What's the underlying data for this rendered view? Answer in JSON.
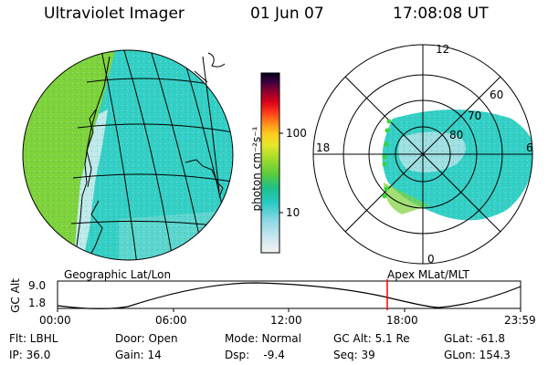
{
  "header": {
    "title": "Ultraviolet Imager",
    "date": "01 Jun 07",
    "time": "17:08:08 UT"
  },
  "colorbar": {
    "unit_label": "photon cm⁻²s⁻¹",
    "ticks": [
      "100",
      "10"
    ]
  },
  "polar_plot": {
    "hour_labels": {
      "top": "12",
      "left": "18",
      "right": "6",
      "bottom": "0"
    },
    "lat_labels": [
      "60",
      "70",
      "80"
    ]
  },
  "projections": {
    "left": "Geographic Lat/Lon",
    "right": "Apex  MLat/MLT"
  },
  "altitude_plot": {
    "ylabel": "GC Alt",
    "ytick_top": "9.0",
    "ytick_bottom": "1.8",
    "x_ticks": [
      "00:00",
      "06:00",
      "12:00",
      "18:00",
      "23:59"
    ],
    "current_time_marker": "17:08"
  },
  "info": {
    "row1": [
      "Flt: LBHL",
      "Door: Open",
      "Mode: Normal",
      "GC Alt: 5.1 Re",
      "GLat: -61.8"
    ],
    "row2": [
      "IP: 36.0",
      "Gain: 14",
      "Dsp:    -9.4",
      "Seq: 39",
      "GLon: 154.3"
    ]
  },
  "colors": {
    "aurora_green": "#7ed23a",
    "aurora_cyan": "#2fd3c8",
    "marker_red": "#ff0000",
    "dot_green": "#39d33c"
  }
}
